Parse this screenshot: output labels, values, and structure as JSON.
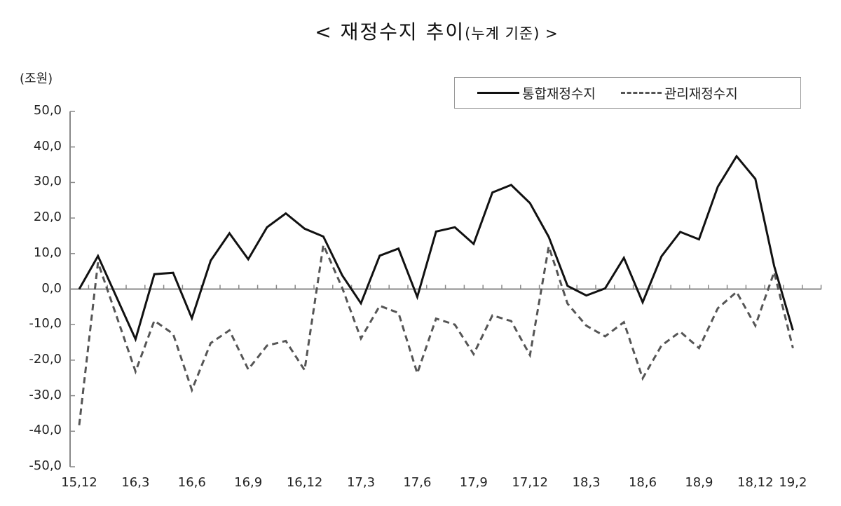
{
  "title": {
    "main": "< 재정수지  추이",
    "sub": "(누계 기준) >"
  },
  "unit_label": "(조원)",
  "legend": {
    "solid_label": "통합재정수지",
    "dashed_label": "관리재정수지"
  },
  "colors": {
    "solid": "#111111",
    "dashed": "#555555",
    "axis": "#888888"
  },
  "chart_data": {
    "type": "line",
    "title": "< 재정수지 추이(누계 기준) >",
    "xlabel": "",
    "ylabel": "(조원)",
    "ylim": [
      -50,
      50
    ],
    "yticks": [
      "50,0",
      "40,0",
      "30,0",
      "20,0",
      "10,0",
      "0,0",
      "-10,0",
      "-20,0",
      "-30,0",
      "-40,0",
      "-50,0"
    ],
    "ytick_values": [
      50,
      40,
      30,
      20,
      10,
      0,
      -10,
      -20,
      -30,
      -40,
      -50
    ],
    "grid": false,
    "legend_position": "top-right",
    "x": [
      "15.12",
      "16.1",
      "16.2",
      "16.3",
      "16.4",
      "16.5",
      "16.6",
      "16.7",
      "16.8",
      "16.9",
      "16.10",
      "16.11",
      "16.12",
      "17.1",
      "17.2",
      "17.3",
      "17.4",
      "17.5",
      "17.6",
      "17.7",
      "17.8",
      "17.9",
      "17.10",
      "17.11",
      "17.12",
      "18.1",
      "18.2",
      "18.3",
      "18.4",
      "18.5",
      "18.6",
      "18.7",
      "18.8",
      "18.9",
      "18.10",
      "18.11",
      "18.12",
      "19.1",
      "19.2"
    ],
    "xtick_labels": [
      {
        "index": 0,
        "label": "15,12"
      },
      {
        "index": 3,
        "label": "16,3"
      },
      {
        "index": 6,
        "label": "16,6"
      },
      {
        "index": 9,
        "label": "16,9"
      },
      {
        "index": 12,
        "label": "16,12"
      },
      {
        "index": 15,
        "label": "17,3"
      },
      {
        "index": 18,
        "label": "17,6"
      },
      {
        "index": 21,
        "label": "17,9"
      },
      {
        "index": 24,
        "label": "17,12"
      },
      {
        "index": 27,
        "label": "18,3"
      },
      {
        "index": 30,
        "label": "18,6"
      },
      {
        "index": 33,
        "label": "18,9"
      },
      {
        "index": 36,
        "label": "18,12"
      },
      {
        "index": 38,
        "label": "19,2"
      }
    ],
    "series": [
      {
        "name": "통합재정수지",
        "style": "solid",
        "values": [
          0.0,
          9.3,
          -2.4,
          -14.1,
          4.2,
          4.6,
          -8.2,
          8.0,
          15.7,
          8.4,
          17.4,
          21.3,
          17.0,
          14.8,
          3.9,
          -4.0,
          9.4,
          11.4,
          -2.2,
          16.2,
          17.4,
          12.7,
          27.2,
          29.3,
          24.2,
          14.7,
          0.9,
          -1.8,
          0.2,
          8.8,
          -3.7,
          9.2,
          16.1,
          14.0,
          28.8,
          37.4,
          31.0,
          6.5,
          -11.6
        ]
      },
      {
        "name": "관리재정수지",
        "style": "dashed",
        "values": [
          -38.3,
          7.5,
          -7.8,
          -23.2,
          -8.9,
          -12.6,
          -28.4,
          -15.2,
          -11.6,
          -22.6,
          -15.9,
          -14.6,
          -22.8,
          12.4,
          0.4,
          -13.9,
          -4.7,
          -6.7,
          -23.7,
          -8.3,
          -10.0,
          -18.3,
          -7.4,
          -9.0,
          -18.6,
          12.0,
          -4.1,
          -10.3,
          -13.3,
          -9.3,
          -25.1,
          -15.9,
          -12.0,
          -16.6,
          -5.4,
          -0.8,
          -10.3,
          4.8,
          -16.6
        ]
      }
    ]
  }
}
